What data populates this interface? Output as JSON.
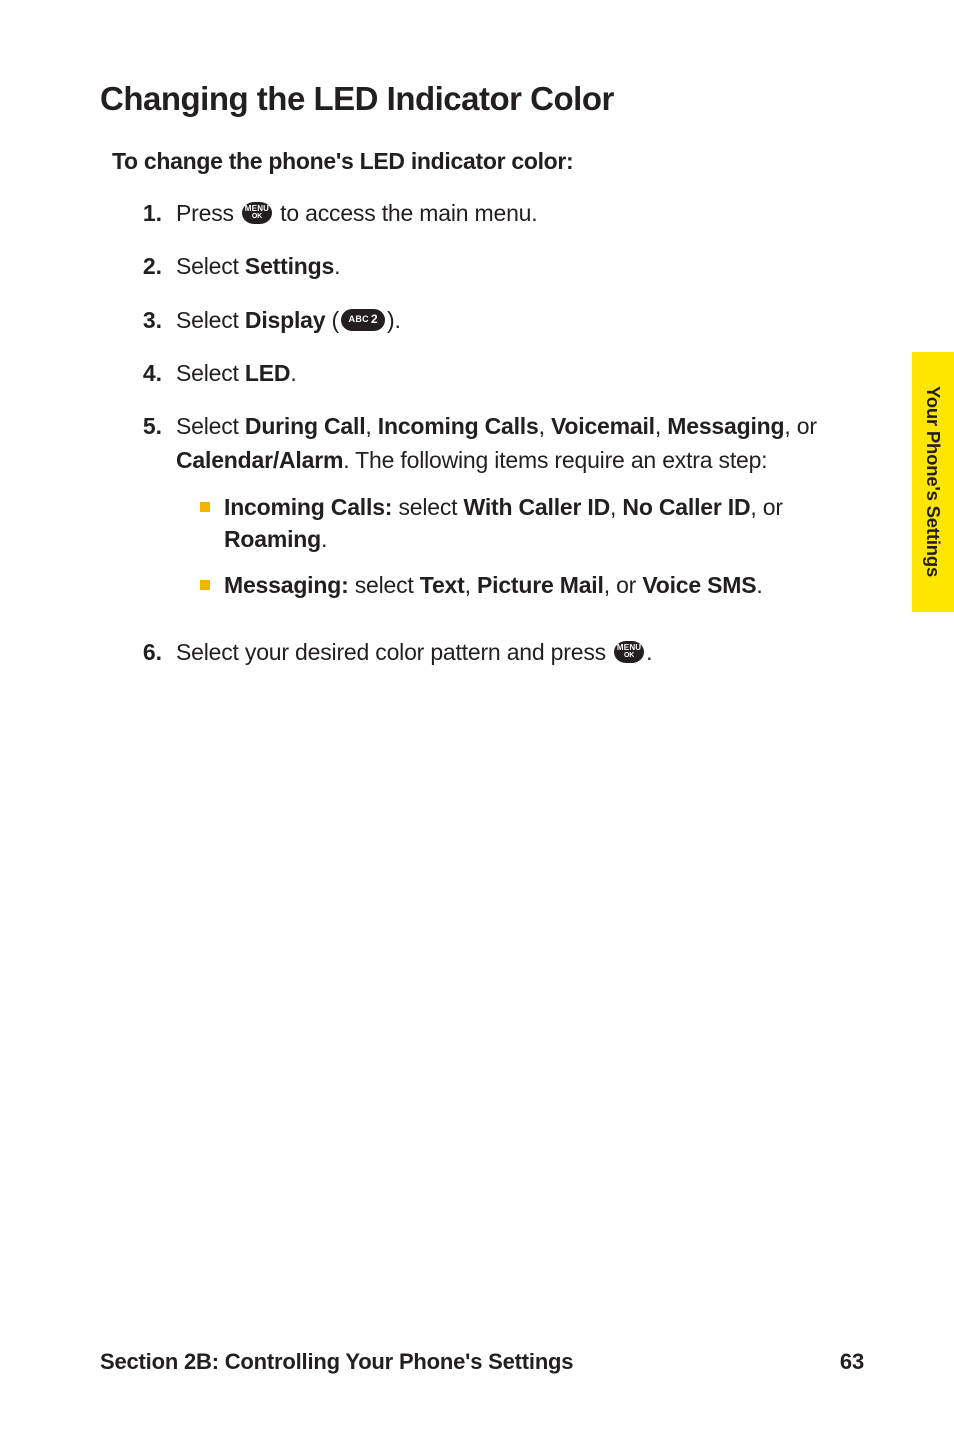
{
  "heading": "Changing the LED Indicator Color",
  "subheading": "To change the phone's LED indicator color:",
  "steps": [
    {
      "num": "1.",
      "parts": [
        {
          "t": "Press "
        },
        {
          "icon": "menu"
        },
        {
          "t": " to access the main menu."
        }
      ]
    },
    {
      "num": "2.",
      "parts": [
        {
          "t": "Select "
        },
        {
          "b": "Settings"
        },
        {
          "t": "."
        }
      ]
    },
    {
      "num": "3.",
      "parts": [
        {
          "t": "Select "
        },
        {
          "b": "Display"
        },
        {
          "t": " ("
        },
        {
          "icon": "abc2"
        },
        {
          "t": ")."
        }
      ]
    },
    {
      "num": "4.",
      "parts": [
        {
          "t": "Select "
        },
        {
          "b": "LED"
        },
        {
          "t": "."
        }
      ]
    },
    {
      "num": "5.",
      "parts": [
        {
          "t": "Select "
        },
        {
          "b": "During Call"
        },
        {
          "t": ", "
        },
        {
          "b": "Incoming Calls"
        },
        {
          "t": ", "
        },
        {
          "b": "Voicemail"
        },
        {
          "t": ", "
        },
        {
          "b": "Messaging"
        },
        {
          "t": ", or "
        },
        {
          "b": "Calendar/Alarm"
        },
        {
          "t": ". The following items require an extra step:"
        }
      ],
      "sub": [
        [
          {
            "b": "Incoming Calls:"
          },
          {
            "t": " select "
          },
          {
            "b": "With Caller ID"
          },
          {
            "t": ", "
          },
          {
            "b": "No Caller ID"
          },
          {
            "t": ", or "
          },
          {
            "b": "Roaming"
          },
          {
            "t": "."
          }
        ],
        [
          {
            "b": "Messaging:"
          },
          {
            "t": " select "
          },
          {
            "b": "Text"
          },
          {
            "t": ", "
          },
          {
            "b": "Picture Mail"
          },
          {
            "t": ", or "
          },
          {
            "b": "Voice SMS"
          },
          {
            "t": "."
          }
        ]
      ]
    },
    {
      "num": "6.",
      "parts": [
        {
          "t": "Select your desired color pattern and press "
        },
        {
          "icon": "menu"
        },
        {
          "t": "."
        }
      ]
    }
  ],
  "sideTab": "Your Phone's Settings",
  "footer": {
    "section": "Section 2B: Controlling Your Phone's Settings",
    "page": "63"
  },
  "icons": {
    "menu": {
      "line1": "MENU",
      "line2": "OK"
    },
    "abc2": {
      "abc": "ABC",
      "two": "2"
    }
  },
  "colors": {
    "text": "#231f20",
    "accentYellow": "#ffe600",
    "bulletYellow": "#f2b600",
    "iconBg": "#231f20"
  }
}
